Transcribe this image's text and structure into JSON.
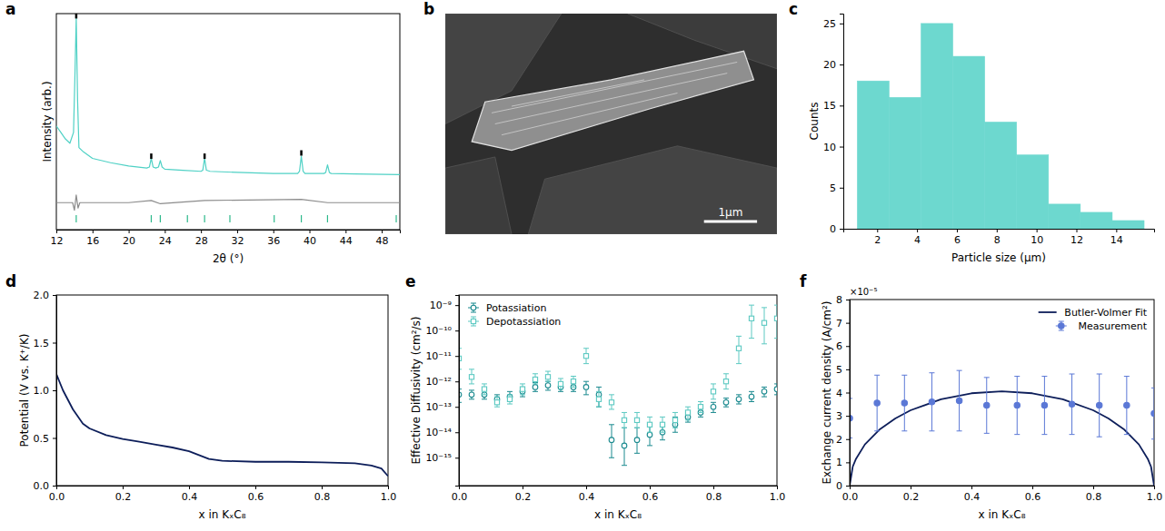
{
  "chart_data": [
    {
      "type": "line",
      "panel": "a",
      "x_label": "2θ (°)",
      "y_label": "Intensity (arb.)",
      "xlim": [
        12,
        50
      ],
      "ylim": [
        0,
        100
      ],
      "xticks": [
        12,
        16,
        20,
        24,
        28,
        32,
        36,
        40,
        44,
        48
      ],
      "tick_labels": "x",
      "series": [
        {
          "type": "line",
          "color": "#8c8c8c",
          "x": [
            12,
            13.8,
            14.0,
            14.2,
            14.4,
            14.6,
            20,
            22.5,
            23.5,
            28.4,
            39.1,
            42,
            50
          ],
          "values": [
            12.5,
            12.5,
            9,
            16,
            10,
            12.5,
            12.5,
            13.5,
            12,
            13.5,
            14,
            12.5,
            12.5
          ]
        },
        {
          "type": "line",
          "color": "#4fd1c5",
          "x": [
            12,
            12.5,
            13,
            13.5,
            13.9,
            14.05,
            14.2,
            14.35,
            14.5,
            15,
            16,
            18,
            20,
            22,
            22.3,
            22.5,
            22.7,
            23,
            23.3,
            23.5,
            23.7,
            24,
            26,
            28,
            28.2,
            28.4,
            28.6,
            29,
            32,
            36,
            38.7,
            38.9,
            39.1,
            39.3,
            39.5,
            41.6,
            41.8,
            42.0,
            42.2,
            42.4,
            45,
            50
          ],
          "values": [
            48,
            45,
            42,
            40,
            45,
            70,
            98,
            60,
            38,
            36,
            33,
            31,
            29.5,
            28.5,
            29,
            33,
            29,
            28.5,
            29,
            32,
            29,
            28,
            27.5,
            27,
            27.5,
            33,
            27.5,
            27,
            26.5,
            26,
            26,
            27,
            34,
            27,
            26,
            26,
            26.5,
            30,
            26.5,
            26,
            25.8,
            25.5
          ]
        },
        {
          "type": "scatter",
          "marker": "tick",
          "color": "#000000",
          "x": [
            14.2,
            22.5,
            28.4,
            39.1
          ],
          "values": [
            99,
            34,
            34,
            35.5
          ]
        }
      ],
      "bragg_positions": [
        14.2,
        22.5,
        23.5,
        26.5,
        28.4,
        31.2,
        36.1,
        39.1,
        42.0,
        49.6
      ]
    },
    {
      "type": "image",
      "panel": "b",
      "scale_bar_label": "1μm"
    },
    {
      "type": "histogram",
      "panel": "c",
      "x_label": "Particle size (μm)",
      "y_label": "Counts",
      "xlim": [
        0.3,
        15.9
      ],
      "ylim": [
        0,
        26.2
      ],
      "xticks": [
        2,
        4,
        6,
        8,
        10,
        12,
        14
      ],
      "yticks": [
        0,
        5,
        10,
        15,
        20,
        25
      ],
      "color": "#6dd8cf",
      "bins": [
        1.0,
        2.6,
        4.2,
        5.8,
        7.4,
        9.0,
        10.6,
        12.2,
        13.8,
        15.4
      ],
      "counts": [
        18,
        16,
        25,
        21,
        13,
        9,
        3,
        2,
        1
      ]
    },
    {
      "type": "line",
      "panel": "d",
      "x_label": "x in KₓC₈",
      "y_label": "Potential (V vs. K⁺/K)",
      "xlim": [
        0,
        1
      ],
      "ylim": [
        0,
        2
      ],
      "xticks": [
        {
          "value": 0,
          "label": "0.0"
        },
        {
          "value": 0.2,
          "label": "0.2"
        },
        {
          "value": 0.4,
          "label": "0.4"
        },
        {
          "value": 0.6,
          "label": "0.6"
        },
        {
          "value": 0.8,
          "label": "0.8"
        },
        {
          "value": 1,
          "label": "1.0"
        }
      ],
      "yticks": [
        {
          "value": 0,
          "label": "0.0"
        },
        {
          "value": 0.5,
          "label": "0.5"
        },
        {
          "value": 1,
          "label": "1.0"
        },
        {
          "value": 1.5,
          "label": "1.5"
        },
        {
          "value": 2,
          "label": "2.0"
        }
      ],
      "series": [
        {
          "type": "line",
          "color": "#0d1e5a",
          "x": [
            0,
            0.02,
            0.05,
            0.08,
            0.1,
            0.15,
            0.2,
            0.25,
            0.3,
            0.35,
            0.4,
            0.43,
            0.46,
            0.5,
            0.6,
            0.7,
            0.8,
            0.9,
            0.95,
            0.98,
            1.0
          ],
          "values": [
            1.17,
            1.0,
            0.8,
            0.65,
            0.6,
            0.53,
            0.49,
            0.46,
            0.43,
            0.4,
            0.36,
            0.32,
            0.28,
            0.26,
            0.25,
            0.25,
            0.245,
            0.235,
            0.21,
            0.18,
            0.1
          ]
        }
      ]
    },
    {
      "type": "scatter",
      "panel": "e",
      "x_label": "x in KₓC₈",
      "y_label": "Effective Diffusivity (cm²/s)",
      "log": "y",
      "legend": "upper left",
      "xlim": [
        0,
        1
      ],
      "ylim": [
        8e-17,
        2.5e-09
      ],
      "xticks": [
        {
          "value": 0,
          "label": "0.0"
        },
        {
          "value": 0.2,
          "label": "0.2"
        },
        {
          "value": 0.4,
          "label": "0.4"
        },
        {
          "value": 0.6,
          "label": "0.6"
        },
        {
          "value": 0.8,
          "label": "0.8"
        },
        {
          "value": 1,
          "label": "1.0"
        }
      ],
      "yticks": [
        {
          "value": 1e-15,
          "label": "10⁻¹⁵"
        },
        {
          "value": 1e-14,
          "label": "10⁻¹⁴"
        },
        {
          "value": 1e-13,
          "label": "10⁻¹³"
        },
        {
          "value": 1e-12,
          "label": "10⁻¹²"
        },
        {
          "value": 1e-11,
          "label": "10⁻¹¹"
        },
        {
          "value": 1e-10,
          "label": "10⁻¹⁰"
        },
        {
          "value": 1e-09,
          "label": "10⁻⁹"
        }
      ],
      "x": [
        0,
        0.04,
        0.08,
        0.12,
        0.16,
        0.2,
        0.24,
        0.28,
        0.32,
        0.36,
        0.4,
        0.44,
        0.48,
        0.52,
        0.56,
        0.6,
        0.64,
        0.68,
        0.72,
        0.76,
        0.8,
        0.84,
        0.88,
        0.92,
        0.96,
        1.0
      ],
      "series": [
        {
          "name": "Potassiation",
          "color": "#1b8a8f",
          "marker": "open_circle",
          "values": [
            3e-13,
            3e-13,
            3e-13,
            2e-13,
            2.5e-13,
            4e-13,
            6e-13,
            7e-13,
            6e-13,
            6e-13,
            6e-13,
            3e-13,
            5e-15,
            3e-15,
            5e-15,
            8e-15,
            1e-14,
            2e-14,
            4e-14,
            6e-14,
            1e-13,
            1.5e-13,
            2e-13,
            2.5e-13,
            4e-13,
            5e-13
          ],
          "lower": [
            1.5e-13,
            2e-13,
            2e-13,
            1.3e-13,
            1.6e-13,
            2.5e-13,
            4e-13,
            4.5e-13,
            4e-13,
            4e-13,
            3e-13,
            1e-13,
            1e-15,
            5e-16,
            1.5e-15,
            3e-15,
            5e-15,
            1e-14,
            2.5e-14,
            4e-14,
            6e-14,
            1e-13,
            1.3e-13,
            1.6e-13,
            2.5e-13,
            3e-13
          ],
          "upper": [
            5e-13,
            4.5e-13,
            4.5e-13,
            3e-13,
            4e-13,
            6e-13,
            9e-13,
            1e-12,
            9e-13,
            9e-13,
            1e-12,
            6e-13,
            2e-14,
            1.5e-14,
            1.5e-14,
            2e-14,
            2e-14,
            4e-14,
            6e-14,
            9e-14,
            1.5e-13,
            2.2e-13,
            3e-13,
            4e-13,
            6e-13,
            8e-13
          ]
        },
        {
          "name": "Depotassiation",
          "color": "#5cc9c2",
          "marker": "open_square",
          "values": [
            8e-12,
            1.5e-12,
            5e-13,
            1.5e-13,
            2e-13,
            5e-13,
            1.2e-12,
            1.5e-12,
            8e-13,
            1e-12,
            1e-11,
            2e-13,
            1.5e-13,
            3e-14,
            3e-14,
            2e-14,
            2e-14,
            3e-14,
            6e-14,
            1e-13,
            4e-13,
            1e-12,
            2e-11,
            3e-10,
            2e-10,
            3e-10
          ],
          "lower": [
            3e-12,
            8e-13,
            3e-13,
            1e-13,
            1.3e-13,
            3e-13,
            8e-13,
            1e-12,
            5e-13,
            6e-13,
            5e-12,
            1e-13,
            8e-14,
            1.5e-14,
            1.5e-14,
            1e-14,
            1e-14,
            1.5e-14,
            3e-14,
            6e-14,
            2e-13,
            5e-13,
            5e-12,
            5e-11,
            3e-11,
            5e-11
          ],
          "upper": [
            2e-11,
            3e-12,
            8e-13,
            2.5e-13,
            3e-13,
            8e-13,
            2e-12,
            2.5e-12,
            1.3e-12,
            1.6e-12,
            2e-11,
            4e-13,
            3e-13,
            6e-14,
            6e-14,
            4e-14,
            4e-14,
            6e-14,
            1e-13,
            1.6e-13,
            8e-13,
            2e-12,
            6e-11,
            1e-09,
            8e-10,
            1e-09
          ]
        }
      ]
    },
    {
      "type": "line",
      "panel": "f",
      "x_label": "x in KₓC₈",
      "y_label": "Exchange current density (A/cm²)",
      "y_offset_label": "×10⁻⁵",
      "legend": "upper right",
      "xlim": [
        0,
        1
      ],
      "ylim": [
        0,
        8
      ],
      "xticks": [
        {
          "value": 0,
          "label": "0.0"
        },
        {
          "value": 0.2,
          "label": "0.2"
        },
        {
          "value": 0.4,
          "label": "0.4"
        },
        {
          "value": 0.6,
          "label": "0.6"
        },
        {
          "value": 0.8,
          "label": "0.8"
        },
        {
          "value": 1,
          "label": "1.0"
        }
      ],
      "yticks": [
        0,
        1,
        2,
        3,
        4,
        5,
        6,
        7,
        8
      ],
      "series": [
        {
          "name": "Butler-Volmer Fit",
          "type": "line",
          "color": "#0d1e5a",
          "x": [
            0,
            0.01,
            0.02,
            0.05,
            0.1,
            0.15,
            0.2,
            0.3,
            0.4,
            0.5,
            0.6,
            0.7,
            0.8,
            0.85,
            0.9,
            0.95,
            0.98,
            0.99,
            1.0
          ],
          "values": [
            0,
            0.81,
            1.13,
            1.77,
            2.43,
            2.89,
            3.24,
            3.71,
            3.97,
            4.05,
            3.97,
            3.71,
            3.24,
            2.89,
            2.43,
            1.77,
            1.13,
            0.81,
            0
          ]
        },
        {
          "name": "Measurement",
          "type": "scatter",
          "marker": "circle",
          "color": "#5b78d6",
          "x": [
            0,
            0.09,
            0.18,
            0.27,
            0.36,
            0.45,
            0.55,
            0.64,
            0.73,
            0.82,
            0.91,
            1.0
          ],
          "values": [
            2.9,
            3.55,
            3.55,
            3.6,
            3.65,
            3.45,
            3.45,
            3.45,
            3.5,
            3.45,
            3.45,
            3.1
          ],
          "errors": [
            0.85,
            1.2,
            1.2,
            1.25,
            1.3,
            1.2,
            1.25,
            1.25,
            1.3,
            1.35,
            1.25,
            1.1
          ]
        }
      ]
    }
  ]
}
